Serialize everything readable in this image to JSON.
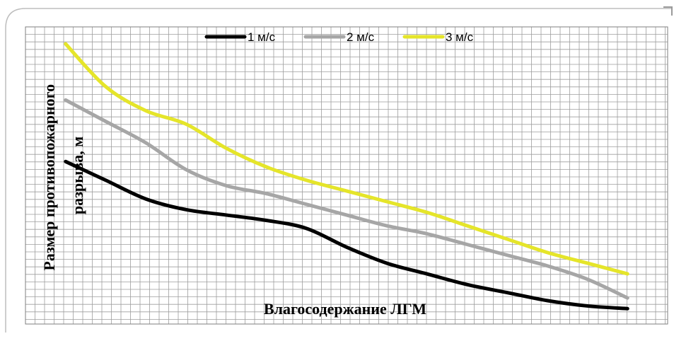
{
  "chart_data": {
    "type": "line",
    "title": "",
    "xlabel": "Влагосодержание ЛГМ",
    "ylabel": "Размер противопожарного разрыва, м",
    "x": [
      1,
      2,
      3,
      4,
      5,
      6,
      7,
      8,
      9,
      10,
      11,
      12,
      13,
      14,
      15
    ],
    "xlim": [
      0,
      16
    ],
    "ylim": [
      0,
      100
    ],
    "x_tick_labels_shown": false,
    "y_tick_labels_shown": false,
    "grid": true,
    "legend": "top",
    "series": [
      {
        "name": "1 м/с",
        "color": "#000000",
        "values": [
          56,
          49,
          42,
          38,
          36,
          34,
          31,
          24,
          18,
          14,
          10,
          7,
          4,
          2,
          1
        ]
      },
      {
        "name": "2 м/с",
        "color": "#a6a6a6",
        "values": [
          79,
          71,
          63,
          53,
          47,
          44,
          40,
          36,
          32,
          29,
          25,
          21,
          17,
          12,
          5
        ]
      },
      {
        "name": "3 м/с",
        "color": "#e5e52a",
        "values": [
          100,
          84,
          75,
          70,
          61,
          54,
          49,
          45,
          41,
          37,
          32,
          27,
          22,
          18,
          14
        ]
      }
    ]
  }
}
